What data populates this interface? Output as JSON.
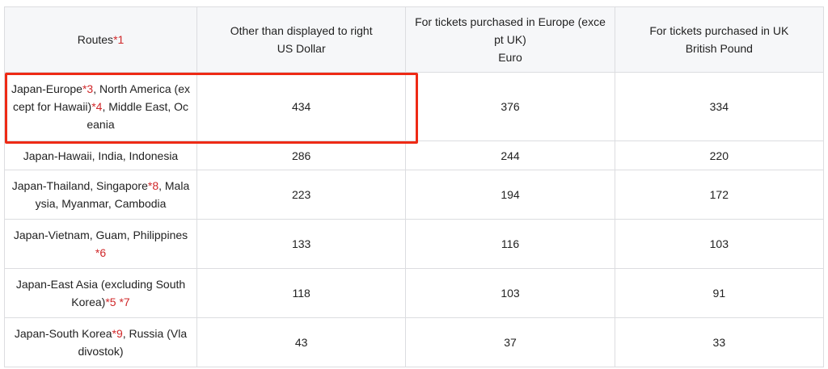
{
  "header": {
    "routes": "Routes",
    "routes_note": "*1",
    "usd_line1": "Other than displayed to right",
    "usd_line2": "US Dollar",
    "eur_line1": "For tickets purchased in Europe (except UK)",
    "eur_line2": "Euro",
    "gbp_line1": "For tickets purchased in UK",
    "gbp_line2": "British Pound"
  },
  "rows": [
    {
      "route": [
        {
          "t": "Japan-Europe"
        },
        {
          "t": "*3",
          "note": true
        },
        {
          "t": ", North America (except for Hawaii)"
        },
        {
          "t": "*4",
          "note": true
        },
        {
          "t": ", Middle East, Oceania"
        }
      ],
      "usd": "434",
      "eur": "376",
      "gbp": "334",
      "highlighted": true
    },
    {
      "route": [
        {
          "t": "Japan-Hawaii, India, Indonesia"
        }
      ],
      "usd": "286",
      "eur": "244",
      "gbp": "220"
    },
    {
      "route": [
        {
          "t": "Japan-Thailand, Singapore"
        },
        {
          "t": "*8",
          "note": true
        },
        {
          "t": ", Malaysia, Myanmar, Cambodia"
        }
      ],
      "usd": "223",
      "eur": "194",
      "gbp": "172"
    },
    {
      "route": [
        {
          "t": "Japan-Vietnam, Guam, Philippines "
        },
        {
          "t": "*6",
          "note": true
        }
      ],
      "usd": "133",
      "eur": "116",
      "gbp": "103"
    },
    {
      "route": [
        {
          "t": "Japan-East Asia (excluding South Korea)"
        },
        {
          "t": "*5 *7",
          "note": true
        }
      ],
      "usd": "118",
      "eur": "103",
      "gbp": "91"
    },
    {
      "route": [
        {
          "t": "Japan-South Korea"
        },
        {
          "t": "*9",
          "note": true
        },
        {
          "t": ", Russia (Vladivostok)"
        }
      ],
      "usd": "43",
      "eur": "37",
      "gbp": "33"
    }
  ],
  "colors": {
    "note": "#d0282a",
    "highlight_box": "#ee2a15",
    "header_bg": "#f6f7f9"
  }
}
